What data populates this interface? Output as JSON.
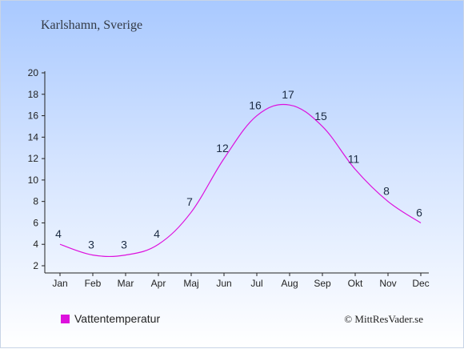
{
  "header": {
    "title": "Karlshamn, Sverige"
  },
  "footer": {
    "copyright": "© MittResVader.se"
  },
  "colors": {
    "series": "#dd11dd",
    "axis": "#222222",
    "label": "#1c2c44"
  },
  "chart_data": {
    "type": "line",
    "categories": [
      "Jan",
      "Feb",
      "Mar",
      "Apr",
      "Maj",
      "Jun",
      "Jul",
      "Aug",
      "Sep",
      "Okt",
      "Nov",
      "Dec"
    ],
    "series": [
      {
        "name": "Vattentemperatur",
        "values": [
          4,
          3,
          3,
          4,
          7,
          12,
          16,
          17,
          15,
          11,
          8,
          6
        ]
      }
    ],
    "yticks": [
      2,
      4,
      6,
      8,
      10,
      12,
      14,
      16,
      18,
      20
    ],
    "ylim": [
      2,
      20
    ],
    "grid": false,
    "legend": "bottom-left"
  }
}
